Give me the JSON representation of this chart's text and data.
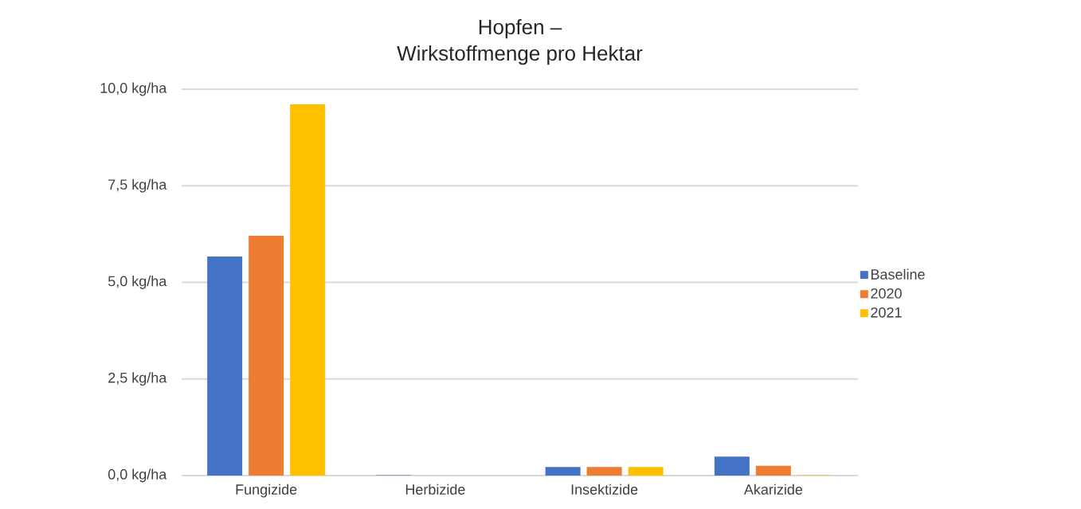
{
  "chart_data": {
    "type": "bar",
    "title": "Hopfen –",
    "subtitle": "Wirkstoffmenge pro Hektar",
    "categories": [
      "Fungizide",
      "Herbizide",
      "Insektizide",
      "Akarizide"
    ],
    "series": [
      {
        "name": "Baseline",
        "color": "#4472c4",
        "values": [
          5.67,
          0.01,
          0.22,
          0.49
        ]
      },
      {
        "name": "2020",
        "color": "#ed7d31",
        "values": [
          6.21,
          0,
          0.22,
          0.25
        ]
      },
      {
        "name": "2021",
        "color": "#ffc000",
        "values": [
          9.61,
          0,
          0.22,
          0.01
        ]
      }
    ],
    "ylim": [
      0,
      10
    ],
    "yticks": [
      {
        "value": 0,
        "label": "0,0 kg/ha"
      },
      {
        "value": 2.5,
        "label": "2,5 kg/ha"
      },
      {
        "value": 5,
        "label": "5,0 kg/ha"
      },
      {
        "value": 7.5,
        "label": "7,5 kg/ha"
      },
      {
        "value": 10,
        "label": "10,0 kg/ha"
      }
    ],
    "grid": "y",
    "legend": "right"
  }
}
